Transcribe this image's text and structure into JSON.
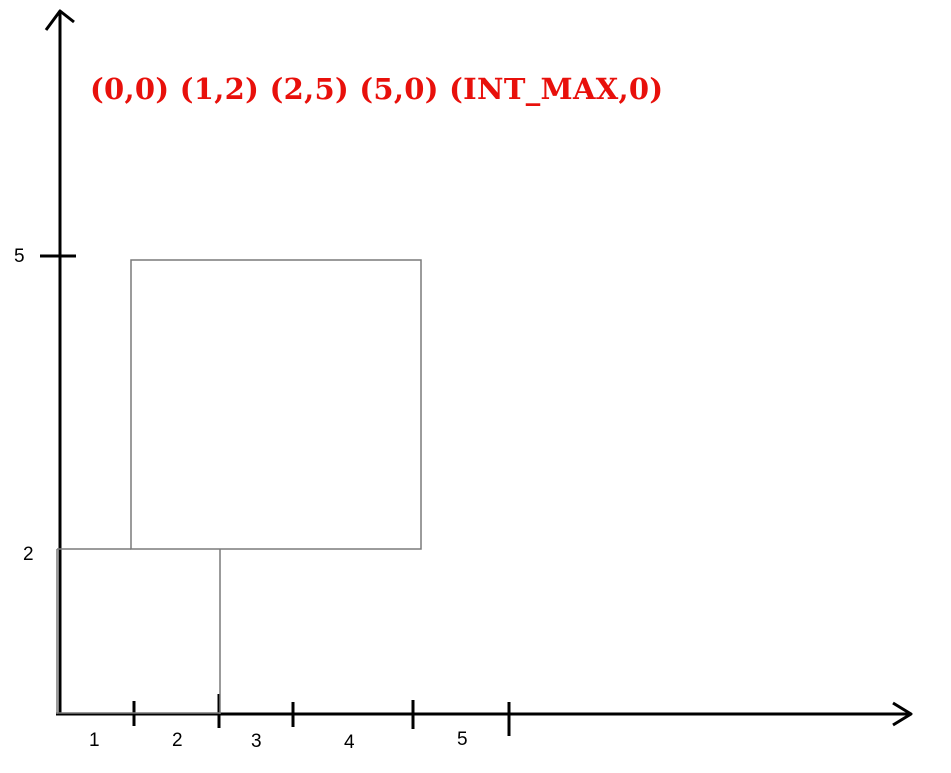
{
  "headline": "(0,0)  (1,2)  (2,5)  (5,0)  (INT_MAX,0)",
  "colors": {
    "headline": "#e8100b",
    "axes": "#000000",
    "outline": "#7a7a7a"
  },
  "x_tick_labels": [
    "1",
    "2",
    "3",
    "4",
    "5"
  ],
  "y_tick_labels": [
    "5",
    "2"
  ]
}
